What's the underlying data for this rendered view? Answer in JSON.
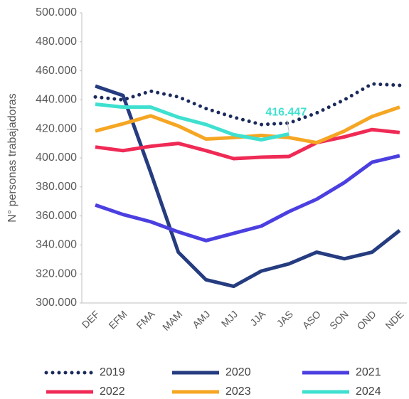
{
  "chart_data": {
    "type": "line",
    "y_label": "N° personas trabajadoras",
    "categories": [
      "DEF",
      "EFM",
      "FMA",
      "MAM",
      "AMJ",
      "MJJ",
      "JJA",
      "JAS",
      "ASO",
      "SON",
      "OND",
      "NDE"
    ],
    "ylim": [
      300000,
      500000
    ],
    "yticks": [
      {
        "value": 300000,
        "label": "300.000"
      },
      {
        "value": 320000,
        "label": "320.000"
      },
      {
        "value": 340000,
        "label": "340.000"
      },
      {
        "value": 360000,
        "label": "360.000"
      },
      {
        "value": 380000,
        "label": "380.000"
      },
      {
        "value": 400000,
        "label": "400.000"
      },
      {
        "value": 420000,
        "label": "420.000"
      },
      {
        "value": 440000,
        "label": "440.000"
      },
      {
        "value": 460000,
        "label": "460.000"
      },
      {
        "value": 480000,
        "label": "480.000"
      },
      {
        "value": 500000,
        "label": "500.000"
      }
    ],
    "grid": false,
    "legend": "bottom",
    "series": [
      {
        "name": "2019",
        "color": "#1b2a5c",
        "line_style": "dotted",
        "values": [
          442000,
          440000,
          446000,
          442000,
          434000,
          428000,
          423000,
          424000,
          431000,
          440000,
          451000,
          450000
        ]
      },
      {
        "name": "2020",
        "color": "#263c80",
        "line_style": "solid",
        "values": [
          449500,
          443000,
          390000,
          335000,
          316000,
          311500,
          322000,
          327000,
          335000,
          330500,
          335000,
          350000
        ]
      },
      {
        "name": "2021",
        "color": "#4b3fe0",
        "line_style": "solid",
        "values": [
          367500,
          361000,
          356000,
          349000,
          343000,
          348000,
          353000,
          363000,
          371500,
          383000,
          397000,
          401500
        ]
      },
      {
        "name": "2022",
        "color": "#ef2a55",
        "line_style": "solid",
        "values": [
          407500,
          405000,
          408000,
          410000,
          405000,
          399500,
          400500,
          401000,
          410500,
          414500,
          419500,
          417500
        ]
      },
      {
        "name": "2023",
        "color": "#f5a623",
        "line_style": "solid",
        "values": [
          418500,
          423500,
          429000,
          422000,
          413000,
          414000,
          415500,
          414000,
          410500,
          418500,
          428500,
          435000
        ]
      },
      {
        "name": "2024",
        "color": "#3fe0d0",
        "line_style": "solid",
        "values": [
          437000,
          435000,
          435000,
          428000,
          423000,
          416000,
          412500,
          416447,
          null,
          null,
          null,
          null
        ],
        "value_labels": [
          null,
          null,
          null,
          null,
          null,
          null,
          null,
          "416.447",
          null,
          null,
          null,
          null
        ]
      }
    ]
  }
}
